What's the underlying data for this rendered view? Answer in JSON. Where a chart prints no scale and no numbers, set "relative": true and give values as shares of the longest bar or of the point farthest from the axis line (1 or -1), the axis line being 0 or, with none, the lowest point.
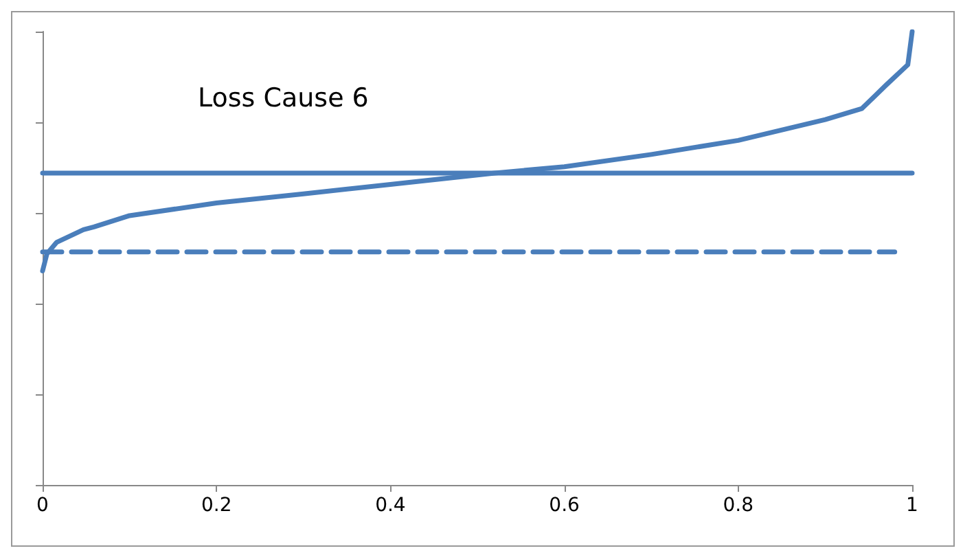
{
  "chart_data": {
    "type": "line",
    "title": "Loss Cause 6",
    "relative": true,
    "xlim": [
      0,
      1
    ],
    "xticks": [
      0,
      0.2,
      0.4,
      0.6,
      0.8,
      1
    ],
    "tick_labels": "x",
    "grid": false,
    "marker": "none",
    "series": [
      {
        "color": "#4a7ebb",
        "line_style": "solid",
        "x": [
          0,
          0.005,
          0.016,
          0.047,
          0.059,
          0.1,
          0.2,
          0.3,
          0.4,
          0.52,
          0.6,
          0.7,
          0.8,
          0.9,
          0.942,
          0.97,
          0.995,
          1
        ],
        "values": [
          0.472,
          0.51,
          0.535,
          0.563,
          0.569,
          0.594,
          0.622,
          0.642,
          0.663,
          0.688,
          0.702,
          0.729,
          0.76,
          0.806,
          0.83,
          0.882,
          0.927,
          1
        ]
      },
      {
        "color": "#4a7ebb",
        "line_style": "solid",
        "x": [
          0,
          1
        ],
        "values": [
          0.688,
          0.688
        ]
      },
      {
        "color": "#4a7ebb",
        "line_style": "dashed",
        "x": [
          0,
          0.98
        ],
        "values": [
          0.514,
          0.514
        ]
      }
    ]
  }
}
